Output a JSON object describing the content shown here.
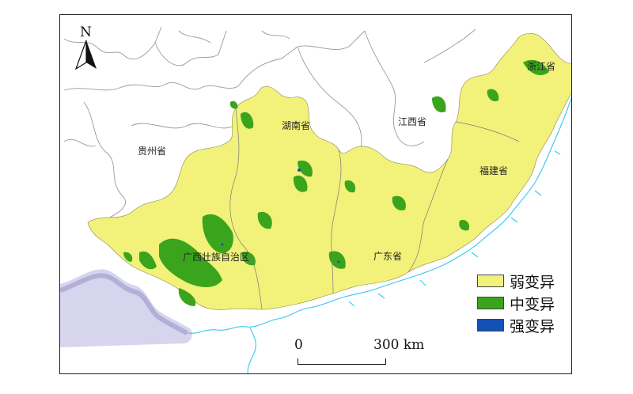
{
  "map": {
    "north_label": "N",
    "provinces": [
      {
        "id": "guizhou",
        "name": "贵州省"
      },
      {
        "id": "hunan",
        "name": "湖南省"
      },
      {
        "id": "jiangxi",
        "name": "江西省"
      },
      {
        "id": "zhejiang",
        "name": "浙江省"
      },
      {
        "id": "fujian",
        "name": "福建省"
      },
      {
        "id": "guangxi",
        "name": "广西壮族自治区"
      },
      {
        "id": "guangdong",
        "name": "广东省"
      }
    ],
    "legend": [
      {
        "label": "弱变异",
        "color": "#f2f27a"
      },
      {
        "label": "中变异",
        "color": "#3aa51c"
      },
      {
        "label": "强变异",
        "color": "#1451b5"
      }
    ],
    "scale_bar": {
      "start": "0",
      "end": "300 km"
    },
    "colors": {
      "coast": "#36c8ee",
      "border": "#9a9a9a",
      "sea_region": "#b8b4dc"
    }
  }
}
